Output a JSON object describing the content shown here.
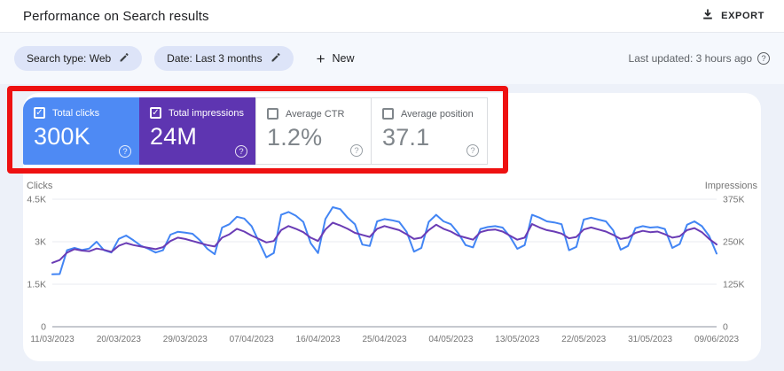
{
  "header": {
    "title": "Performance on Search results",
    "export_label": "EXPORT"
  },
  "filters": {
    "chips": [
      {
        "label": "Search type: Web"
      },
      {
        "label": "Date: Last 3 months"
      }
    ],
    "new_label": "New",
    "last_updated": "Last updated: 3 hours ago"
  },
  "metric_cards": [
    {
      "label": "Total clicks",
      "value": "300K",
      "checked": true,
      "bg": "#4e8af4",
      "text": "#ffffff"
    },
    {
      "label": "Total impressions",
      "value": "24M",
      "checked": true,
      "bg": "#5e35b1",
      "text": "#ffffff"
    },
    {
      "label": "Average CTR",
      "value": "1.2%",
      "checked": false,
      "bg": "#ffffff",
      "text": "#80868b"
    },
    {
      "label": "Average position",
      "value": "37.1",
      "checked": false,
      "bg": "#ffffff",
      "text": "#80868b"
    }
  ],
  "annotation": {
    "type": "highlight-box",
    "color": "#ee1111"
  },
  "chart_data": {
    "type": "line",
    "grid": true,
    "legend": "none",
    "x_tick_labels": [
      "11/03/2023",
      "20/03/2023",
      "29/03/2023",
      "07/04/2023",
      "16/04/2023",
      "25/04/2023",
      "04/05/2023",
      "13/05/2023",
      "22/05/2023",
      "31/05/2023",
      "09/06/2023"
    ],
    "left_axis": {
      "label": "Clicks",
      "max": 4500,
      "ticks": [
        {
          "label": "4.5K",
          "value": 4500
        },
        {
          "label": "3K",
          "value": 3000
        },
        {
          "label": "1.5K",
          "value": 1500
        },
        {
          "label": "0",
          "value": 0
        }
      ]
    },
    "right_axis": {
      "label": "Impressions",
      "max": 375000,
      "ticks": [
        {
          "label": "375K",
          "value": 375000
        },
        {
          "label": "250K",
          "value": 250000
        },
        {
          "label": "125K",
          "value": 125000
        },
        {
          "label": "0",
          "value": 0
        }
      ]
    },
    "series": [
      {
        "name": "Total clicks",
        "axis": "left",
        "color": "#4285f4",
        "values": [
          1850,
          1860,
          2700,
          2780,
          2710,
          2760,
          3000,
          2700,
          2620,
          3100,
          3220,
          3050,
          2860,
          2750,
          2620,
          2700,
          3250,
          3350,
          3320,
          3280,
          3050,
          2750,
          2560,
          3500,
          3620,
          3880,
          3820,
          3550,
          3000,
          2450,
          2600,
          3950,
          4050,
          3920,
          3700,
          2950,
          2600,
          3800,
          4220,
          4150,
          3850,
          3620,
          2900,
          2850,
          3720,
          3800,
          3760,
          3700,
          3350,
          2650,
          2780,
          3700,
          3950,
          3720,
          3620,
          3300,
          2880,
          2800,
          3450,
          3520,
          3550,
          3500,
          3180,
          2750,
          2880,
          3950,
          3850,
          3720,
          3680,
          3620,
          2700,
          2820,
          3780,
          3850,
          3780,
          3720,
          3400,
          2720,
          2850,
          3480,
          3550,
          3500,
          3520,
          3450,
          2780,
          2920,
          3600,
          3720,
          3550,
          3200,
          2580
        ]
      },
      {
        "name": "Total impressions",
        "axis": "right",
        "color": "#6a3cb5",
        "values": [
          188000,
          196000,
          218000,
          228000,
          224000,
          222000,
          230000,
          226000,
          220000,
          238000,
          246000,
          240000,
          236000,
          232000,
          228000,
          234000,
          252000,
          262000,
          258000,
          252000,
          246000,
          240000,
          236000,
          262000,
          272000,
          288000,
          280000,
          268000,
          258000,
          248000,
          252000,
          284000,
          296000,
          288000,
          278000,
          262000,
          252000,
          286000,
          306000,
          298000,
          288000,
          276000,
          270000,
          264000,
          288000,
          296000,
          290000,
          284000,
          272000,
          258000,
          262000,
          284000,
          300000,
          288000,
          280000,
          268000,
          262000,
          256000,
          278000,
          284000,
          286000,
          280000,
          268000,
          256000,
          262000,
          302000,
          292000,
          284000,
          280000,
          274000,
          260000,
          264000,
          286000,
          292000,
          286000,
          280000,
          270000,
          258000,
          262000,
          276000,
          282000,
          278000,
          280000,
          272000,
          262000,
          266000,
          284000,
          290000,
          278000,
          258000,
          242000
        ]
      }
    ]
  }
}
